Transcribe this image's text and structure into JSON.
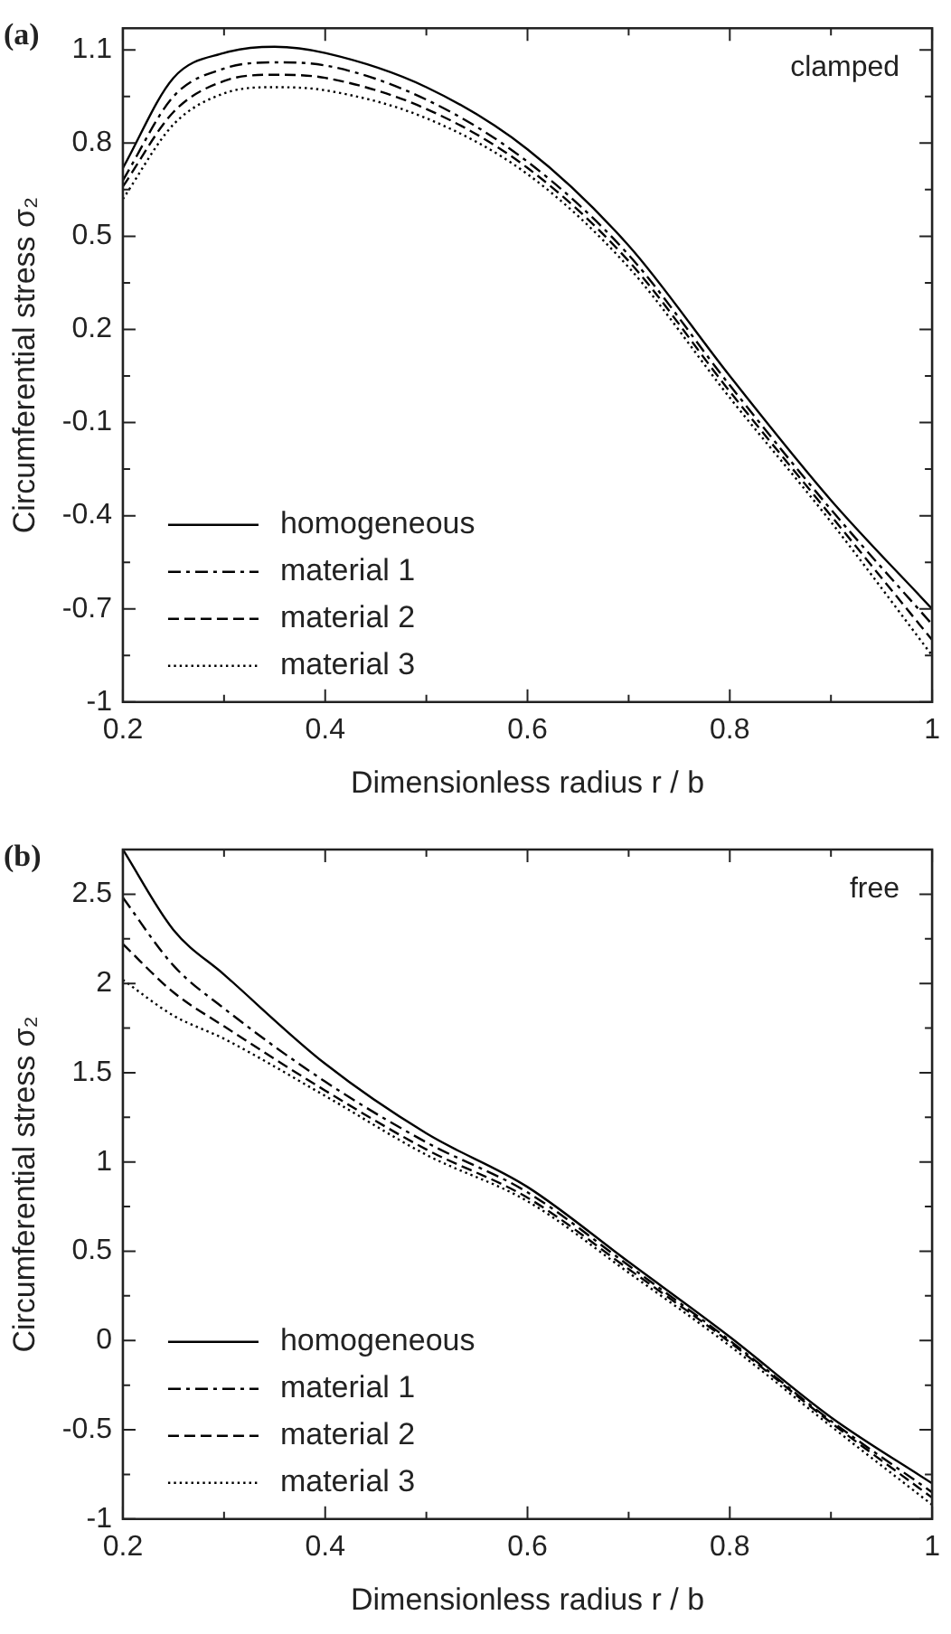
{
  "chart_data": [
    {
      "type": "line",
      "title": "(a)",
      "xlabel": "Dimensionless radius r / b",
      "ylabel": "Circumferential stress σ₂",
      "annotations": [
        "clamped"
      ],
      "x": [
        0.2,
        0.25,
        0.3,
        0.35,
        0.4,
        0.5,
        0.6,
        0.7,
        0.8,
        0.9,
        1.0
      ],
      "series": [
        {
          "name": "homogeneous",
          "color": "#000000",
          "line_style": "solid",
          "values": [
            0.72,
            1.01,
            1.09,
            1.11,
            1.09,
            0.98,
            0.78,
            0.47,
            0.05,
            -0.35,
            -0.7
          ]
        },
        {
          "name": "material 1",
          "color": "#000000",
          "line_style": "dashdot",
          "values": [
            0.68,
            0.95,
            1.04,
            1.06,
            1.05,
            0.94,
            0.74,
            0.44,
            0.02,
            -0.38,
            -0.75
          ]
        },
        {
          "name": "material 2",
          "color": "#000000",
          "line_style": "dashed",
          "values": [
            0.66,
            0.9,
            1.0,
            1.02,
            1.01,
            0.91,
            0.72,
            0.42,
            0.0,
            -0.4,
            -0.8
          ]
        },
        {
          "name": "material 3",
          "color": "#000000",
          "line_style": "dotted",
          "values": [
            0.62,
            0.86,
            0.96,
            0.98,
            0.97,
            0.88,
            0.7,
            0.4,
            -0.02,
            -0.42,
            -0.85
          ]
        }
      ],
      "xlim": [
        0.2,
        1
      ],
      "xticks": [
        0.2,
        {
          "value": 0.3,
          "label": null
        },
        0.4,
        {
          "value": 0.5,
          "label": null
        },
        0.6,
        {
          "value": 0.7,
          "label": null
        },
        0.8,
        {
          "value": 0.9,
          "label": null
        },
        1
      ],
      "ylim": [
        -1,
        1.17
      ],
      "yticks": [
        -1,
        {
          "value": -0.85,
          "label": null
        },
        -0.7,
        {
          "value": -0.55,
          "label": null
        },
        -0.4,
        {
          "value": -0.25,
          "label": null
        },
        -0.1,
        {
          "value": 0.05,
          "label": null
        },
        0.2,
        {
          "value": 0.35,
          "label": null
        },
        0.5,
        {
          "value": 0.65,
          "label": null
        },
        0.8,
        {
          "value": 0.95,
          "label": null
        },
        1.1
      ],
      "legend": "bottom left",
      "grid": false,
      "marker": "none"
    },
    {
      "type": "line",
      "title": "(b)",
      "xlabel": "Dimensionless radius r / b",
      "ylabel": "Circumferential stress σ₂",
      "annotations": [
        "free"
      ],
      "x": [
        0.2,
        0.25,
        0.3,
        0.4,
        0.5,
        0.6,
        0.7,
        0.8,
        0.9,
        1.0
      ],
      "series": [
        {
          "name": "homogeneous",
          "color": "#000000",
          "line_style": "solid",
          "values": [
            2.75,
            2.3,
            2.05,
            1.55,
            1.16,
            0.86,
            0.44,
            0.02,
            -0.43,
            -0.8
          ]
        },
        {
          "name": "material 1",
          "color": "#000000",
          "line_style": "dashdot",
          "values": [
            2.48,
            2.1,
            1.86,
            1.45,
            1.11,
            0.83,
            0.42,
            0.0,
            -0.45,
            -0.85
          ]
        },
        {
          "name": "material 2",
          "color": "#000000",
          "line_style": "dashed",
          "values": [
            2.22,
            1.95,
            1.76,
            1.4,
            1.07,
            0.8,
            0.4,
            -0.01,
            -0.46,
            -0.88
          ]
        },
        {
          "name": "material 3",
          "color": "#000000",
          "line_style": "dotted",
          "values": [
            2.02,
            1.82,
            1.69,
            1.37,
            1.04,
            0.78,
            0.38,
            -0.03,
            -0.48,
            -0.92
          ]
        }
      ],
      "xlim": [
        0.2,
        1
      ],
      "xticks": [
        0.2,
        {
          "value": 0.3,
          "label": null
        },
        0.4,
        {
          "value": 0.5,
          "label": null
        },
        0.6,
        {
          "value": 0.7,
          "label": null
        },
        0.8,
        {
          "value": 0.9,
          "label": null
        },
        1
      ],
      "ylim": [
        -1,
        2.75
      ],
      "yticks": [
        -1,
        {
          "value": -0.75,
          "label": null
        },
        -0.5,
        {
          "value": -0.25,
          "label": null
        },
        0,
        {
          "value": 0.25,
          "label": null
        },
        0.5,
        {
          "value": 0.75,
          "label": null
        },
        1,
        {
          "value": 1.25,
          "label": null
        },
        1.5,
        {
          "value": 1.75,
          "label": null
        },
        2,
        {
          "value": 2.25,
          "label": null
        },
        2.5
      ],
      "legend": "bottom left",
      "grid": false,
      "marker": "none"
    }
  ]
}
